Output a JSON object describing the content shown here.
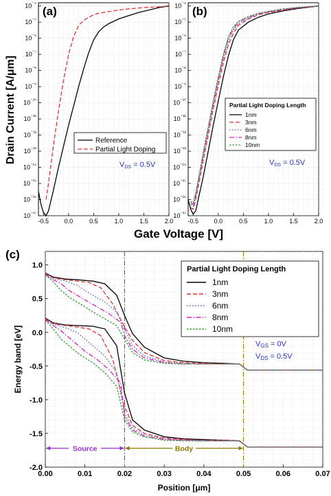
{
  "chart_data": [
    {
      "type": "line",
      "panel_label": "(a)",
      "title": "",
      "xlabel": "Gate Voltage [V]",
      "ylabel": "Drain Current [A/μm]",
      "xlim": [
        -0.6,
        2.0
      ],
      "ylim_log10": [
        -17,
        -3.8
      ],
      "yscale": "log",
      "xticks": [
        "-0.5",
        "0.0",
        "0.5",
        "1.0",
        "1.5",
        "2.0"
      ],
      "yticks": [
        "10⁻⁴",
        "10⁻⁵",
        "10⁻⁶",
        "10⁻⁷",
        "10⁻⁸",
        "10⁻⁹",
        "10⁻¹⁰",
        "10⁻¹¹",
        "10⁻¹²",
        "10⁻¹³",
        "10⁻¹⁴",
        "10⁻¹⁵",
        "10⁻¹⁶",
        "10⁻¹⁷"
      ],
      "legend_position": "lower-right",
      "annotation": {
        "main": "V",
        "sub": "DS",
        "rest": " = 0.5V"
      },
      "series": [
        {
          "name": "Reference",
          "color": "#000000",
          "dash": "solid",
          "x": [
            -0.6,
            -0.55,
            -0.5,
            -0.45,
            -0.4,
            -0.3,
            -0.2,
            -0.1,
            0.0,
            0.1,
            0.2,
            0.3,
            0.4,
            0.5,
            0.6,
            0.7,
            0.8,
            1.0,
            1.2,
            1.4,
            1.6,
            1.8,
            2.0
          ],
          "log10_y": [
            -15.5,
            -16.3,
            -16.8,
            -17.0,
            -16.7,
            -15.4,
            -14.0,
            -12.7,
            -11.4,
            -10.2,
            -9.0,
            -7.9,
            -6.9,
            -6.1,
            -5.6,
            -5.3,
            -5.1,
            -4.8,
            -4.6,
            -4.4,
            -4.25,
            -4.1,
            -4.0
          ]
        },
        {
          "name": "Partial Light Doping",
          "color": "#e03030",
          "dash": "dashed",
          "x": [
            -0.45,
            -0.4,
            -0.35,
            -0.3,
            -0.2,
            -0.1,
            0.0,
            0.1,
            0.2,
            0.3,
            0.4,
            0.5,
            0.6,
            0.8,
            1.0,
            1.2,
            1.5,
            1.8,
            2.0
          ],
          "log10_y": [
            -16.0,
            -15.0,
            -13.8,
            -12.6,
            -10.5,
            -8.6,
            -7.0,
            -5.9,
            -5.2,
            -4.9,
            -4.7,
            -4.55,
            -4.45,
            -4.35,
            -4.25,
            -4.18,
            -4.1,
            -4.05,
            -4.0
          ]
        }
      ]
    },
    {
      "type": "line",
      "panel_label": "(b)",
      "title": "",
      "xlabel": "",
      "ylabel": "",
      "xlim": [
        -0.6,
        2.0
      ],
      "ylim_log10": [
        -17,
        -3.8
      ],
      "yscale": "log",
      "xticks": [
        "-0.5",
        "0.0",
        "0.5",
        "1.0",
        "1.5",
        "2.0"
      ],
      "yticks": [
        "10⁻⁴",
        "10⁻⁵",
        "10⁻⁶",
        "10⁻⁷",
        "10⁻⁸",
        "10⁻⁹",
        "10⁻¹⁰",
        "10⁻¹¹",
        "10⁻¹²",
        "10⁻¹³",
        "10⁻¹⁴",
        "10⁻¹⁵",
        "10⁻¹⁶",
        "10⁻¹⁷"
      ],
      "legend_title": "Partial Light Doping Length",
      "legend_position": "middle-right",
      "annotation": {
        "main": "V",
        "sub": "DS",
        "rest": " = 0.5V"
      },
      "series": [
        {
          "name": "1nm",
          "color": "#000000",
          "dash": "solid",
          "x": [
            -0.6,
            -0.55,
            -0.5,
            -0.45,
            -0.4,
            -0.3,
            -0.2,
            -0.1,
            0.0,
            0.1,
            0.2,
            0.3,
            0.4,
            0.6,
            0.8,
            1.0,
            1.3,
            1.6,
            2.0
          ],
          "log10_y": [
            -16.0,
            -16.6,
            -16.9,
            -16.7,
            -16.0,
            -14.6,
            -13.0,
            -11.4,
            -9.9,
            -8.4,
            -7.1,
            -6.1,
            -5.5,
            -5.0,
            -4.7,
            -4.5,
            -4.3,
            -4.15,
            -4.0
          ]
        },
        {
          "name": "3nm",
          "color": "#e03030",
          "dash": "dashed",
          "x": [
            -0.55,
            -0.5,
            -0.45,
            -0.4,
            -0.3,
            -0.2,
            -0.1,
            0.0,
            0.1,
            0.2,
            0.3,
            0.4,
            0.6,
            0.8,
            1.0,
            1.3,
            1.6,
            2.0
          ],
          "log10_y": [
            -16.5,
            -16.6,
            -16.0,
            -15.2,
            -13.6,
            -12.0,
            -10.4,
            -8.9,
            -7.5,
            -6.4,
            -5.7,
            -5.2,
            -4.8,
            -4.55,
            -4.4,
            -4.25,
            -4.12,
            -4.0
          ]
        },
        {
          "name": "6nm",
          "color": "#4a5ab0",
          "dash": "dotted",
          "x": [
            -0.55,
            -0.5,
            -0.45,
            -0.4,
            -0.3,
            -0.2,
            -0.1,
            0.0,
            0.1,
            0.2,
            0.3,
            0.4,
            0.6,
            0.8,
            1.0,
            1.3,
            1.6,
            2.0
          ],
          "log10_y": [
            -16.3,
            -16.4,
            -15.8,
            -15.0,
            -13.4,
            -11.8,
            -10.2,
            -8.7,
            -7.3,
            -6.2,
            -5.5,
            -5.1,
            -4.75,
            -4.5,
            -4.37,
            -4.22,
            -4.1,
            -4.0
          ]
        },
        {
          "name": "8nm",
          "color": "#d020c8",
          "dash": "dashdot",
          "x": [
            -0.55,
            -0.5,
            -0.45,
            -0.4,
            -0.3,
            -0.2,
            -0.1,
            0.0,
            0.1,
            0.2,
            0.3,
            0.4,
            0.6,
            0.8,
            1.0,
            1.3,
            1.6,
            2.0
          ],
          "log10_y": [
            -16.2,
            -16.3,
            -15.7,
            -14.9,
            -13.2,
            -11.6,
            -10.0,
            -8.5,
            -7.1,
            -6.0,
            -5.4,
            -5.0,
            -4.7,
            -4.48,
            -4.35,
            -4.2,
            -4.1,
            -4.0
          ]
        },
        {
          "name": "10nm",
          "color": "#2e9a2e",
          "dash": "shortdot",
          "x": [
            -0.55,
            -0.5,
            -0.45,
            -0.4,
            -0.3,
            -0.2,
            -0.1,
            0.0,
            0.1,
            0.2,
            0.3,
            0.4,
            0.6,
            0.8,
            1.0,
            1.3,
            1.6,
            2.0
          ],
          "log10_y": [
            -16.1,
            -16.2,
            -15.6,
            -14.8,
            -13.1,
            -11.5,
            -9.9,
            -8.4,
            -7.0,
            -5.9,
            -5.3,
            -4.95,
            -4.65,
            -4.45,
            -4.33,
            -4.18,
            -4.08,
            -4.0
          ]
        }
      ]
    },
    {
      "type": "line",
      "panel_label": "(c)",
      "title": "",
      "xlabel": "Position [μm]",
      "ylabel": "Energy band [eV]",
      "xlim": [
        0.0,
        0.07
      ],
      "ylim": [
        -2.0,
        1.2
      ],
      "xticks": [
        "0.00",
        "0.01",
        "0.02",
        "0.03",
        "0.04",
        "0.05",
        "0.06",
        "0.07"
      ],
      "yticks": [
        "1.0",
        "0.5",
        "0.0",
        "-0.5",
        "-1.0",
        "-1.5",
        "-2.0"
      ],
      "legend_title": "Partial Light Doping Length",
      "legend_position": "top-right",
      "annotations": [
        {
          "main": "V",
          "sub": "GS",
          "rest": " = 0V"
        },
        {
          "main": "V",
          "sub": "DS",
          "rest": " = 0.5V"
        }
      ],
      "regions": [
        {
          "label": "Source",
          "x0": 0.0,
          "x1": 0.02,
          "color": "#9b30d0"
        },
        {
          "label": "Body",
          "x0": 0.02,
          "x1": 0.05,
          "color": "#8a7a00"
        }
      ],
      "vlines": [
        {
          "x": 0.02,
          "color": "#7a3fd0"
        },
        {
          "x": 0.05,
          "color": "#8a7a00"
        }
      ],
      "series": [
        {
          "name": "1nm",
          "color": "#000000",
          "dash": "solid",
          "x": [
            0.0,
            0.002,
            0.005,
            0.008,
            0.012,
            0.015,
            0.018,
            0.02,
            0.022,
            0.025,
            0.03,
            0.035,
            0.04,
            0.045,
            0.049,
            0.0505,
            0.051,
            0.055,
            0.06,
            0.065,
            0.07
          ],
          "ec": [
            0.88,
            0.82,
            0.79,
            0.78,
            0.76,
            0.72,
            0.55,
            0.25,
            -0.02,
            -0.22,
            -0.38,
            -0.43,
            -0.45,
            -0.46,
            -0.47,
            -0.54,
            -0.56,
            -0.56,
            -0.56,
            -0.56,
            -0.56
          ],
          "ev": [
            0.21,
            0.14,
            0.11,
            0.1,
            0.09,
            0.05,
            -0.2,
            -0.9,
            -1.3,
            -1.45,
            -1.55,
            -1.58,
            -1.59,
            -1.6,
            -1.61,
            -1.68,
            -1.7,
            -1.7,
            -1.7,
            -1.7,
            -1.7
          ]
        },
        {
          "name": "3nm",
          "color": "#e03030",
          "dash": "dashed",
          "x": [
            0.0,
            0.002,
            0.005,
            0.008,
            0.011,
            0.014,
            0.017,
            0.02,
            0.022,
            0.025,
            0.03,
            0.035,
            0.04,
            0.045,
            0.049,
            0.0505,
            0.051,
            0.055,
            0.06,
            0.065,
            0.07
          ],
          "ec": [
            0.87,
            0.81,
            0.78,
            0.76,
            0.74,
            0.66,
            0.42,
            0.08,
            -0.12,
            -0.3,
            -0.42,
            -0.45,
            -0.46,
            -0.47,
            -0.47,
            -0.54,
            -0.56,
            -0.56,
            -0.56,
            -0.56,
            -0.56
          ],
          "ev": [
            0.2,
            0.13,
            0.1,
            0.08,
            0.05,
            -0.05,
            -0.4,
            -1.1,
            -1.38,
            -1.5,
            -1.57,
            -1.59,
            -1.6,
            -1.6,
            -1.61,
            -1.68,
            -1.7,
            -1.7,
            -1.7,
            -1.7,
            -1.7
          ]
        },
        {
          "name": "6nm",
          "color": "#4a5ab0",
          "dash": "dotted",
          "x": [
            0.0,
            0.002,
            0.005,
            0.008,
            0.01,
            0.012,
            0.015,
            0.018,
            0.02,
            0.022,
            0.025,
            0.03,
            0.035,
            0.04,
            0.045,
            0.049,
            0.0505,
            0.051,
            0.055,
            0.06,
            0.065,
            0.07
          ],
          "ec": [
            0.86,
            0.8,
            0.76,
            0.7,
            0.62,
            0.55,
            0.45,
            0.3,
            0.05,
            -0.2,
            -0.35,
            -0.44,
            -0.46,
            -0.47,
            -0.47,
            -0.47,
            -0.54,
            -0.56,
            -0.56,
            -0.56,
            -0.56,
            -0.56
          ],
          "ev": [
            0.19,
            0.12,
            0.07,
            0.0,
            -0.1,
            -0.2,
            -0.35,
            -0.6,
            -1.2,
            -1.42,
            -1.52,
            -1.58,
            -1.6,
            -1.6,
            -1.61,
            -1.61,
            -1.68,
            -1.7,
            -1.7,
            -1.7,
            -1.7,
            -1.7
          ]
        },
        {
          "name": "8nm",
          "color": "#d020c8",
          "dash": "dashdot",
          "x": [
            0.0,
            0.002,
            0.004,
            0.006,
            0.008,
            0.01,
            0.013,
            0.016,
            0.019,
            0.02,
            0.022,
            0.025,
            0.03,
            0.035,
            0.04,
            0.045,
            0.049,
            0.0505,
            0.051,
            0.055,
            0.06,
            0.065,
            0.07
          ],
          "ec": [
            0.86,
            0.78,
            0.72,
            0.62,
            0.55,
            0.48,
            0.38,
            0.28,
            0.15,
            -0.05,
            -0.25,
            -0.38,
            -0.45,
            -0.47,
            -0.47,
            -0.47,
            -0.47,
            -0.54,
            -0.56,
            -0.56,
            -0.56,
            -0.56,
            -0.56
          ],
          "ev": [
            0.19,
            0.1,
            0.02,
            -0.08,
            -0.18,
            -0.28,
            -0.4,
            -0.55,
            -0.75,
            -1.25,
            -1.45,
            -1.54,
            -1.59,
            -1.6,
            -1.61,
            -1.61,
            -1.61,
            -1.68,
            -1.7,
            -1.7,
            -1.7,
            -1.7,
            -1.7
          ]
        },
        {
          "name": "10nm",
          "color": "#2e9a2e",
          "dash": "shortdot",
          "x": [
            0.0,
            0.002,
            0.004,
            0.006,
            0.008,
            0.01,
            0.012,
            0.015,
            0.018,
            0.02,
            0.022,
            0.025,
            0.03,
            0.035,
            0.04,
            0.045,
            0.049,
            0.0505,
            0.051,
            0.055,
            0.06,
            0.065,
            0.07
          ],
          "ec": [
            0.85,
            0.75,
            0.62,
            0.52,
            0.45,
            0.38,
            0.3,
            0.2,
            0.1,
            -0.1,
            -0.3,
            -0.41,
            -0.46,
            -0.47,
            -0.47,
            -0.47,
            -0.47,
            -0.54,
            -0.56,
            -0.56,
            -0.56,
            -0.56,
            -0.56
          ],
          "ev": [
            0.18,
            0.05,
            -0.1,
            -0.2,
            -0.3,
            -0.38,
            -0.45,
            -0.6,
            -0.8,
            -1.3,
            -1.48,
            -1.55,
            -1.6,
            -1.61,
            -1.61,
            -1.61,
            -1.61,
            -1.68,
            -1.7,
            -1.7,
            -1.7,
            -1.7,
            -1.7
          ]
        }
      ]
    }
  ]
}
